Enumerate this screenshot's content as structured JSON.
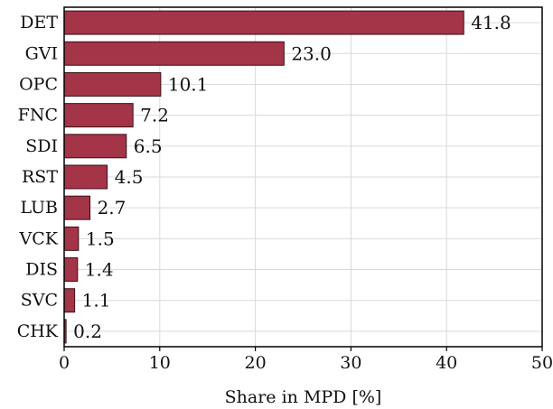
{
  "chart_data": {
    "type": "bar",
    "orientation": "horizontal",
    "categories": [
      "DET",
      "GVI",
      "OPC",
      "FNC",
      "SDI",
      "RST",
      "LUB",
      "VCK",
      "DIS",
      "SVC",
      "CHK"
    ],
    "values": [
      41.8,
      23.0,
      10.1,
      7.2,
      6.5,
      4.5,
      2.7,
      1.5,
      1.4,
      1.1,
      0.2
    ],
    "value_labels": [
      "41.8",
      "23.0",
      "10.1",
      "7.2",
      "6.5",
      "4.5",
      "2.7",
      "1.5",
      "1.4",
      "1.1",
      "0.2"
    ],
    "xlabel": "Share in MPD [%]",
    "ylabel": "",
    "xlim": [
      0,
      50
    ],
    "xticks": [
      0,
      10,
      20,
      30,
      40,
      50
    ],
    "grid": true,
    "bar_color": "#a43448"
  }
}
